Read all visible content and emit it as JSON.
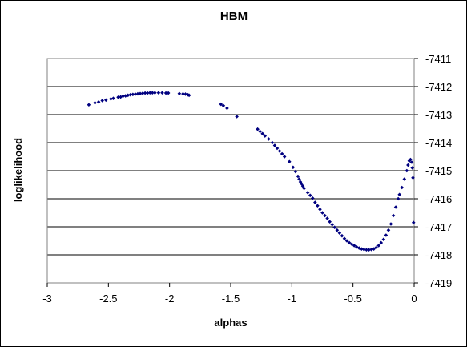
{
  "chart_data": {
    "type": "scatter",
    "title": "HBM",
    "xlabel": "alphas",
    "ylabel": "loglikelihood",
    "xlim": [
      -3,
      0
    ],
    "ylim": [
      -7419,
      -7411
    ],
    "xticks": [
      -3,
      -2.5,
      -2,
      -1.5,
      -1,
      -0.5,
      0
    ],
    "xtick_labels": [
      "-3",
      "-2.5",
      "-2",
      "-1.5",
      "-1",
      "-0.5",
      "0"
    ],
    "yticks": [
      -7411,
      -7412,
      -7413,
      -7414,
      -7415,
      -7416,
      -7417,
      -7418,
      -7419
    ],
    "ytick_labels": [
      "-7411",
      "-7412",
      "-7413",
      "-7414",
      "-7415",
      "-7416",
      "-7417",
      "-7418",
      "-7419"
    ],
    "y_axis_side": "right",
    "grid": "horizontal",
    "marker_color": "#000080",
    "points": [
      [
        -2.66,
        -7412.65
      ],
      [
        -2.61,
        -7412.58
      ],
      [
        -2.58,
        -7412.55
      ],
      [
        -2.55,
        -7412.5
      ],
      [
        -2.52,
        -7412.48
      ],
      [
        -2.48,
        -7412.44
      ],
      [
        -2.46,
        -7412.42
      ],
      [
        -2.42,
        -7412.38
      ],
      [
        -2.4,
        -7412.37
      ],
      [
        -2.38,
        -7412.34
      ],
      [
        -2.36,
        -7412.33
      ],
      [
        -2.34,
        -7412.31
      ],
      [
        -2.32,
        -7412.29
      ],
      [
        -2.3,
        -7412.28
      ],
      [
        -2.28,
        -7412.27
      ],
      [
        -2.26,
        -7412.26
      ],
      [
        -2.24,
        -7412.25
      ],
      [
        -2.22,
        -7412.24
      ],
      [
        -2.2,
        -7412.23
      ],
      [
        -2.18,
        -7412.23
      ],
      [
        -2.16,
        -7412.22
      ],
      [
        -2.14,
        -7412.22
      ],
      [
        -2.12,
        -7412.22
      ],
      [
        -2.09,
        -7412.22
      ],
      [
        -2.06,
        -7412.22
      ],
      [
        -2.03,
        -7412.23
      ],
      [
        -2.01,
        -7412.23
      ],
      [
        -1.92,
        -7412.25
      ],
      [
        -1.89,
        -7412.26
      ],
      [
        -1.87,
        -7412.27
      ],
      [
        -1.85,
        -7412.29
      ],
      [
        -1.84,
        -7412.31
      ],
      [
        -1.58,
        -7412.63
      ],
      [
        -1.56,
        -7412.68
      ],
      [
        -1.53,
        -7412.77
      ],
      [
        -1.45,
        -7413.07
      ],
      [
        -1.28,
        -7413.52
      ],
      [
        -1.26,
        -7413.6
      ],
      [
        -1.24,
        -7413.68
      ],
      [
        -1.22,
        -7413.76
      ],
      [
        -1.19,
        -7413.87
      ],
      [
        -1.16,
        -7414.0
      ],
      [
        -1.14,
        -7414.1
      ],
      [
        -1.12,
        -7414.2
      ],
      [
        -1.1,
        -7414.3
      ],
      [
        -1.08,
        -7414.4
      ],
      [
        -1.06,
        -7414.5
      ],
      [
        -1.02,
        -7414.68
      ],
      [
        -0.99,
        -7414.88
      ],
      [
        -0.97,
        -7415.03
      ],
      [
        -0.95,
        -7415.2
      ],
      [
        -0.94,
        -7415.3
      ],
      [
        -0.93,
        -7415.4
      ],
      [
        -0.92,
        -7415.47
      ],
      [
        -0.91,
        -7415.55
      ],
      [
        -0.9,
        -7415.63
      ],
      [
        -0.87,
        -7415.78
      ],
      [
        -0.85,
        -7415.88
      ],
      [
        -0.83,
        -7415.98
      ],
      [
        -0.81,
        -7416.13
      ],
      [
        -0.79,
        -7416.25
      ],
      [
        -0.77,
        -7416.38
      ],
      [
        -0.75,
        -7416.5
      ],
      [
        -0.73,
        -7416.6
      ],
      [
        -0.71,
        -7416.7
      ],
      [
        -0.69,
        -7416.82
      ],
      [
        -0.67,
        -7416.92
      ],
      [
        -0.65,
        -7417.02
      ],
      [
        -0.63,
        -7417.12
      ],
      [
        -0.61,
        -7417.22
      ],
      [
        -0.59,
        -7417.32
      ],
      [
        -0.57,
        -7417.42
      ],
      [
        -0.55,
        -7417.5
      ],
      [
        -0.53,
        -7417.57
      ],
      [
        -0.51,
        -7417.62
      ],
      [
        -0.49,
        -7417.67
      ],
      [
        -0.47,
        -7417.72
      ],
      [
        -0.45,
        -7417.76
      ],
      [
        -0.43,
        -7417.79
      ],
      [
        -0.41,
        -7417.81
      ],
      [
        -0.39,
        -7417.82
      ],
      [
        -0.37,
        -7417.82
      ],
      [
        -0.35,
        -7417.81
      ],
      [
        -0.33,
        -7417.79
      ],
      [
        -0.31,
        -7417.74
      ],
      [
        -0.29,
        -7417.67
      ],
      [
        -0.27,
        -7417.57
      ],
      [
        -0.25,
        -7417.45
      ],
      [
        -0.23,
        -7417.3
      ],
      [
        -0.21,
        -7417.12
      ],
      [
        -0.19,
        -7416.9
      ],
      [
        -0.17,
        -7416.6
      ],
      [
        -0.15,
        -7416.3
      ],
      [
        -0.13,
        -7416.0
      ],
      [
        -0.12,
        -7415.85
      ],
      [
        -0.1,
        -7415.6
      ],
      [
        -0.08,
        -7415.3
      ],
      [
        -0.06,
        -7415.0
      ],
      [
        -0.05,
        -7414.8
      ],
      [
        -0.04,
        -7414.65
      ],
      [
        -0.03,
        -7414.6
      ],
      [
        -0.02,
        -7414.7
      ],
      [
        -0.015,
        -7414.9
      ],
      [
        -0.01,
        -7415.25
      ],
      [
        -0.005,
        -7416.85
      ]
    ]
  }
}
